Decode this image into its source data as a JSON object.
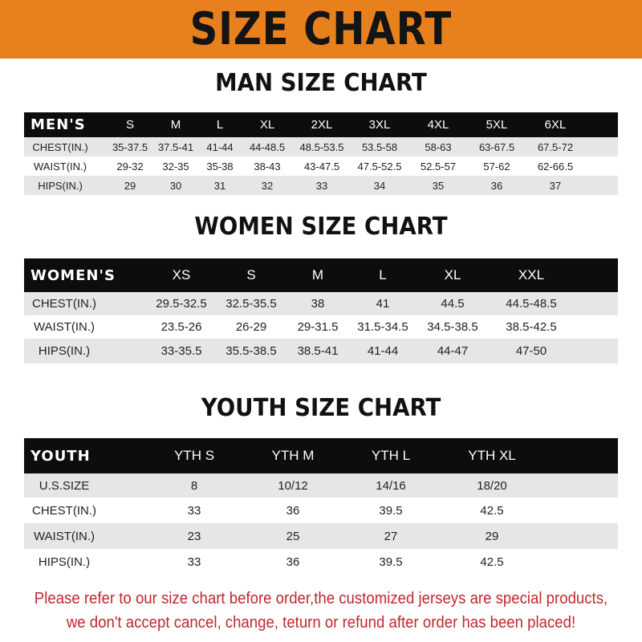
{
  "title": "SIZE CHART",
  "men": {
    "title": "MAN SIZE CHART",
    "header": [
      "MEN'S",
      "S",
      "M",
      "L",
      "XL",
      "2XL",
      "3XL",
      "4XL",
      "5XL",
      "6XL"
    ],
    "rows": [
      [
        "CHEST(IN.)",
        "35-37.5",
        "37.5-41",
        "41-44",
        "44-48.5",
        "48.5-53.5",
        "53.5-58",
        "58-63",
        "63-67.5",
        "67.5-72"
      ],
      [
        "WAIST(IN.)",
        "29-32",
        "32-35",
        "35-38",
        "38-43",
        "43-47.5",
        "47.5-52.5",
        "52.5-57",
        "57-62",
        "62-66.5"
      ],
      [
        "HIPS(IN.)",
        "29",
        "30",
        "31",
        "32",
        "33",
        "34",
        "35",
        "36",
        "37"
      ]
    ]
  },
  "women": {
    "title": "WOMEN SIZE CHART",
    "header": [
      "WOMEN'S",
      "XS",
      "S",
      "M",
      "L",
      "XL",
      "XXL"
    ],
    "rows": [
      [
        "CHEST(IN.)",
        "29.5-32.5",
        "32.5-35.5",
        "38",
        "41",
        "44.5",
        "44.5-48.5"
      ],
      [
        "WAIST(IN.)",
        "23.5-26",
        "26-29",
        "29-31.5",
        "31.5-34.5",
        "34.5-38.5",
        "38.5-42.5"
      ],
      [
        "HIPS(IN.)",
        "33-35.5",
        "35.5-38.5",
        "38.5-41",
        "41-44",
        "44-47",
        "47-50"
      ]
    ]
  },
  "youth": {
    "title": "YOUTH SIZE CHART",
    "header": [
      "YOUTH",
      "YTH S",
      "YTH M",
      "YTH L",
      "YTH XL"
    ],
    "rows": [
      [
        "U.S.SIZE",
        "8",
        "10/12",
        "14/16",
        "18/20"
      ],
      [
        "CHEST(IN.)",
        "33",
        "36",
        "39.5",
        "42.5"
      ],
      [
        "WAIST(IN.)",
        "23",
        "25",
        "27",
        "29"
      ],
      [
        "HIPS(IN.)",
        "33",
        "36",
        "39.5",
        "42.5"
      ]
    ]
  },
  "notice": {
    "line1": "Please refer to our size chart before order,the customized jerseys are special products,",
    "line2": "we don't accept cancel, change, teturn or refund after order has been placed!"
  },
  "colors": {
    "banner": "#e8811d",
    "header_row": "#0d0d0d",
    "notice": "#c1272d"
  }
}
